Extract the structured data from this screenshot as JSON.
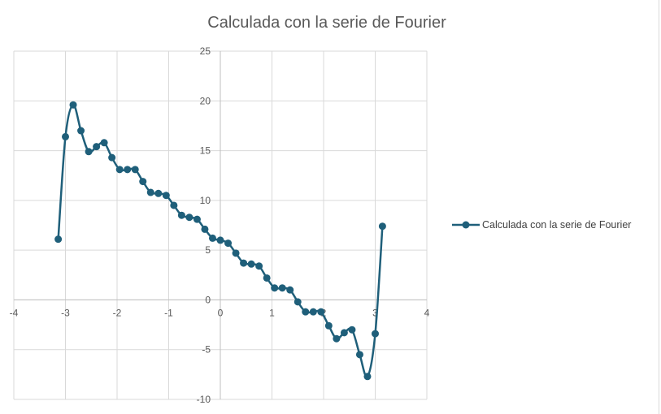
{
  "chart_data": {
    "type": "scatter",
    "title": "Calculada con la serie de Fourier",
    "xlim": [
      -4,
      4
    ],
    "ylim": [
      -10,
      25
    ],
    "x_ticks": [
      -4,
      -3,
      -2,
      -1,
      0,
      1,
      2,
      3,
      4
    ],
    "y_ticks": [
      -10,
      -5,
      0,
      5,
      10,
      15,
      20,
      25
    ],
    "grid": true,
    "legend_position": "right",
    "series": [
      {
        "name": "Calculada con la serie de Fourier",
        "color": "#1f5f7a",
        "smooth": true,
        "x": [
          -3.14,
          -3.0,
          -2.85,
          -2.7,
          -2.55,
          -2.4,
          -2.25,
          -2.1,
          -1.95,
          -1.8,
          -1.65,
          -1.5,
          -1.35,
          -1.2,
          -1.05,
          -0.9,
          -0.75,
          -0.6,
          -0.45,
          -0.3,
          -0.15,
          0.0,
          0.15,
          0.3,
          0.45,
          0.6,
          0.75,
          0.9,
          1.05,
          1.2,
          1.35,
          1.5,
          1.65,
          1.8,
          1.95,
          2.1,
          2.25,
          2.4,
          2.55,
          2.7,
          2.85,
          3.0,
          3.14
        ],
        "y": [
          6.1,
          16.4,
          19.6,
          17.0,
          14.9,
          15.4,
          15.8,
          14.3,
          13.1,
          13.1,
          13.1,
          11.9,
          10.8,
          10.7,
          10.5,
          9.5,
          8.5,
          8.3,
          8.1,
          7.1,
          6.2,
          6.0,
          5.7,
          4.7,
          3.7,
          3.6,
          3.4,
          2.2,
          1.2,
          1.2,
          1.0,
          -0.2,
          -1.2,
          -1.2,
          -1.2,
          -2.6,
          -3.9,
          -3.3,
          -3.0,
          -5.5,
          -7.7,
          -3.4,
          7.4
        ]
      }
    ]
  }
}
